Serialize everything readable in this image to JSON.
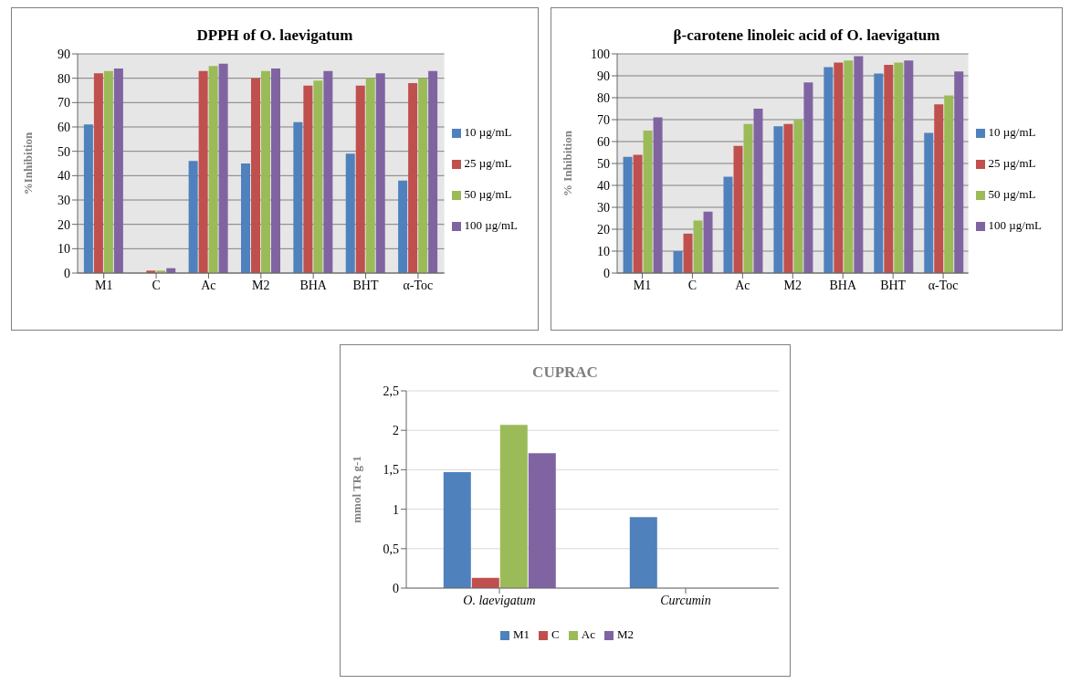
{
  "chart_data": [
    {
      "type": "bar",
      "title": "DPPH  of O. laevigatum",
      "ylabel": "%Inhibition",
      "categories": [
        "M1",
        "C",
        "Ac",
        "M2",
        "BHA",
        "BHT",
        "α-Toc"
      ],
      "series": [
        {
          "name": "10 µg/mL",
          "color": "#4f81bd",
          "values": [
            61,
            0,
            46,
            45,
            62,
            49,
            38
          ]
        },
        {
          "name": "25 µg/mL",
          "color": "#c0504d",
          "values": [
            82,
            1,
            83,
            80,
            77,
            77,
            78
          ]
        },
        {
          "name": "50 µg/mL",
          "color": "#9bbb59",
          "values": [
            83,
            1,
            85,
            83,
            79,
            80,
            80
          ]
        },
        {
          "name": "100 µg/mL",
          "color": "#8064a2",
          "values": [
            84,
            2,
            86,
            84,
            83,
            82,
            83
          ]
        }
      ],
      "ylim": [
        0,
        90
      ],
      "yticks": [
        0,
        10,
        20,
        30,
        40,
        50,
        60,
        70,
        80,
        90
      ],
      "grid": "y",
      "legend": "right"
    },
    {
      "type": "bar",
      "title": "β-carotene linoleic acid of O. laevigatum",
      "ylabel": "% Inhibition",
      "categories": [
        "M1",
        "C",
        "Ac",
        "M2",
        "BHA",
        "BHT",
        "α-Toc"
      ],
      "series": [
        {
          "name": "10 µg/mL",
          "color": "#4f81bd",
          "values": [
            53,
            10,
            44,
            67,
            94,
            91,
            64
          ]
        },
        {
          "name": "25 µg/mL",
          "color": "#c0504d",
          "values": [
            54,
            18,
            58,
            68,
            96,
            95,
            77
          ]
        },
        {
          "name": "50 µg/mL",
          "color": "#9bbb59",
          "values": [
            65,
            24,
            68,
            70,
            97,
            96,
            81
          ]
        },
        {
          "name": "100 µg/mL",
          "color": "#8064a2",
          "values": [
            71,
            28,
            75,
            87,
            99,
            97,
            92
          ]
        }
      ],
      "ylim": [
        0,
        100
      ],
      "yticks": [
        0,
        10,
        20,
        30,
        40,
        50,
        60,
        70,
        80,
        90,
        100
      ],
      "grid": "y",
      "legend": "right"
    },
    {
      "type": "bar",
      "title": "CUPRAC",
      "ylabel": "mmol TR g-1",
      "categories": [
        "O. laevigatum",
        "Curcumin"
      ],
      "series": [
        {
          "name": "M1",
          "color": "#4f81bd",
          "values": [
            1.47,
            0.9
          ]
        },
        {
          "name": "C",
          "color": "#c0504d",
          "values": [
            0.13,
            null
          ]
        },
        {
          "name": "Ac",
          "color": "#9bbb59",
          "values": [
            2.07,
            null
          ]
        },
        {
          "name": "M2",
          "color": "#8064a2",
          "values": [
            1.71,
            null
          ]
        }
      ],
      "ylim": [
        0,
        2.5
      ],
      "yticks": [
        0,
        {
          "value": 0.5,
          "label": "0,5"
        },
        1,
        {
          "value": 1.5,
          "label": "1,5"
        },
        2,
        {
          "value": 2.5,
          "label": "2,5"
        }
      ],
      "grid": "y",
      "legend": "bottom"
    }
  ]
}
